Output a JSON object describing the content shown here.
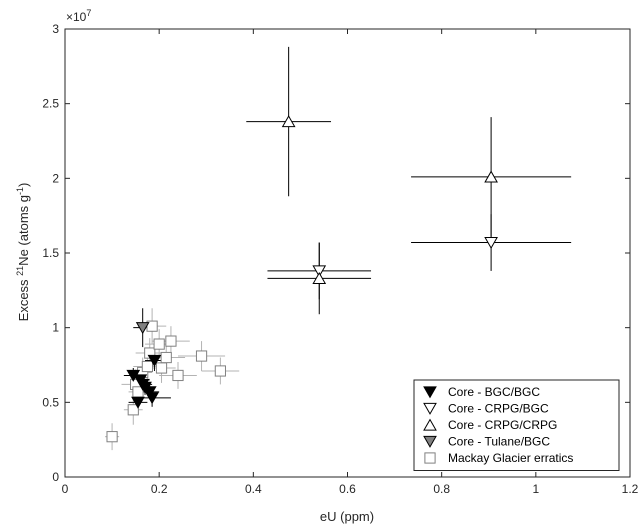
{
  "chart_data": {
    "type": "scatter",
    "title": "",
    "xlabel": "eU (ppm)",
    "ylabel_prefix": "Excess ",
    "ylabel_sup1": "21",
    "ylabel_mid": "Ne (atoms g",
    "ylabel_sup2": "-1",
    "ylabel_suffix": ")",
    "y_exponent_label": "×10",
    "y_exponent_power": "7",
    "xlim": [
      0,
      1.2
    ],
    "ylim": [
      0,
      3
    ],
    "x_ticks": [
      0,
      0.2,
      0.4,
      0.6,
      0.8,
      1,
      1.2
    ],
    "x_tick_labels": [
      "0",
      "0.2",
      "0.4",
      "0.6",
      "0.8",
      "1",
      "1.2"
    ],
    "y_ticks": [
      0,
      0.5,
      1,
      1.5,
      2,
      2.5,
      3
    ],
    "y_tick_labels": [
      "0",
      "0.5",
      "1",
      "1.5",
      "2",
      "2.5",
      "3"
    ],
    "y_units_note": "y values in units of 1e7 atoms g^-1",
    "grid": false,
    "legend_position": "bottom-right",
    "series": [
      {
        "name": "Core - BGC/BGC",
        "marker": "triangle-down-filled",
        "color": "#000000",
        "edge": "#000000",
        "errcolor": "#000000",
        "points": [
          {
            "x": 0.145,
            "y": 0.68,
            "xerr": 0.02,
            "yerr": 0.05
          },
          {
            "x": 0.16,
            "y": 0.65,
            "xerr": 0.02,
            "yerr": 0.05
          },
          {
            "x": 0.165,
            "y": 0.62,
            "xerr": 0.02,
            "yerr": 0.05
          },
          {
            "x": 0.17,
            "y": 0.6,
            "xerr": 0.02,
            "yerr": 0.05
          },
          {
            "x": 0.18,
            "y": 0.57,
            "xerr": 0.02,
            "yerr": 0.05
          },
          {
            "x": 0.19,
            "y": 0.78,
            "xerr": 0.02,
            "yerr": 0.07
          },
          {
            "x": 0.155,
            "y": 0.5,
            "xerr": 0.02,
            "yerr": 0.05
          },
          {
            "x": 0.185,
            "y": 0.53,
            "xerr": 0.04,
            "yerr": 0.06
          }
        ]
      },
      {
        "name": "Core - CRPG/BGC",
        "marker": "triangle-down-open",
        "color": "#ffffff",
        "edge": "#000000",
        "errcolor": "#000000",
        "points": [
          {
            "x": 0.54,
            "y": 1.38,
            "xerr": 0.11,
            "yerr": 0.19
          },
          {
            "x": 0.905,
            "y": 1.57,
            "xerr": 0.17,
            "yerr": 0.19
          }
        ]
      },
      {
        "name": "Core - CRPG/CRPG",
        "marker": "triangle-up-open",
        "color": "#ffffff",
        "edge": "#000000",
        "errcolor": "#000000",
        "points": [
          {
            "x": 0.475,
            "y": 2.38,
            "xerr": 0.09,
            "yerr": 0.5
          },
          {
            "x": 0.905,
            "y": 2.01,
            "xerr": 0.17,
            "yerr": 0.4
          },
          {
            "x": 0.54,
            "y": 1.33,
            "xerr": 0.11,
            "yerr": 0.24
          }
        ]
      },
      {
        "name": "Core - Tulane/BGC",
        "marker": "triangle-down-filled",
        "color": "#808080",
        "edge": "#000000",
        "errcolor": "#000000",
        "points": [
          {
            "x": 0.165,
            "y": 1.0,
            "xerr": 0.02,
            "yerr": 0.13
          }
        ]
      },
      {
        "name": "Mackay Glacier erratics",
        "marker": "square-open",
        "color": "#ffffff",
        "edge": "#808080",
        "errcolor": "#b3b3b3",
        "points": [
          {
            "x": 0.1,
            "y": 0.27,
            "xerr": 0.015,
            "yerr": 0.09
          },
          {
            "x": 0.145,
            "y": 0.45,
            "xerr": 0.02,
            "yerr": 0.1
          },
          {
            "x": 0.15,
            "y": 0.62,
            "xerr": 0.03,
            "yerr": 0.1
          },
          {
            "x": 0.155,
            "y": 0.57,
            "xerr": 0.02,
            "yerr": 0.1
          },
          {
            "x": 0.165,
            "y": 0.7,
            "xerr": 0.02,
            "yerr": 0.1
          },
          {
            "x": 0.175,
            "y": 0.74,
            "xerr": 0.03,
            "yerr": 0.1
          },
          {
            "x": 0.18,
            "y": 0.83,
            "xerr": 0.03,
            "yerr": 0.1
          },
          {
            "x": 0.185,
            "y": 1.01,
            "xerr": 0.03,
            "yerr": 0.12
          },
          {
            "x": 0.2,
            "y": 0.89,
            "xerr": 0.03,
            "yerr": 0.1
          },
          {
            "x": 0.205,
            "y": 0.73,
            "xerr": 0.03,
            "yerr": 0.1
          },
          {
            "x": 0.215,
            "y": 0.8,
            "xerr": 0.04,
            "yerr": 0.1
          },
          {
            "x": 0.225,
            "y": 0.91,
            "xerr": 0.04,
            "yerr": 0.1
          },
          {
            "x": 0.24,
            "y": 0.68,
            "xerr": 0.04,
            "yerr": 0.09
          },
          {
            "x": 0.29,
            "y": 0.81,
            "xerr": 0.05,
            "yerr": 0.1
          },
          {
            "x": 0.33,
            "y": 0.71,
            "xerr": 0.04,
            "yerr": 0.09
          }
        ]
      }
    ]
  }
}
